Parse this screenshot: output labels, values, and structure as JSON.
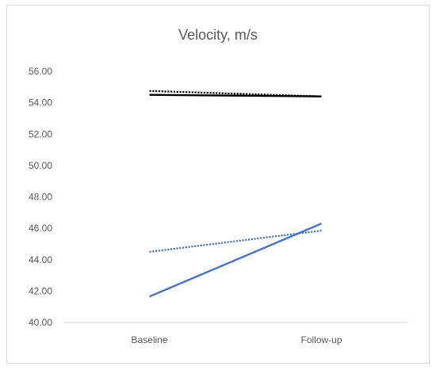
{
  "chart_data": {
    "type": "line",
    "title": "Velocity, m/s",
    "xlabel": "",
    "ylabel": "",
    "categories": [
      "Baseline",
      "Follow-up"
    ],
    "ylim": [
      40,
      56
    ],
    "yticks": [
      "40.00",
      "42.00",
      "44.00",
      "46.00",
      "48.00",
      "50.00",
      "52.00",
      "54.00",
      "56.00"
    ],
    "grid": false,
    "legend": "none",
    "series": [
      {
        "values": [
          54.75,
          54.4
        ],
        "color": "#000000",
        "style": "dotted"
      },
      {
        "values": [
          54.5,
          54.4
        ],
        "color": "#000000",
        "style": "solid"
      },
      {
        "values": [
          44.5,
          45.85
        ],
        "color": "#4472c4",
        "style": "dotted"
      },
      {
        "values": [
          41.65,
          46.3
        ],
        "color": "#4472c4",
        "style": "solid"
      }
    ]
  }
}
